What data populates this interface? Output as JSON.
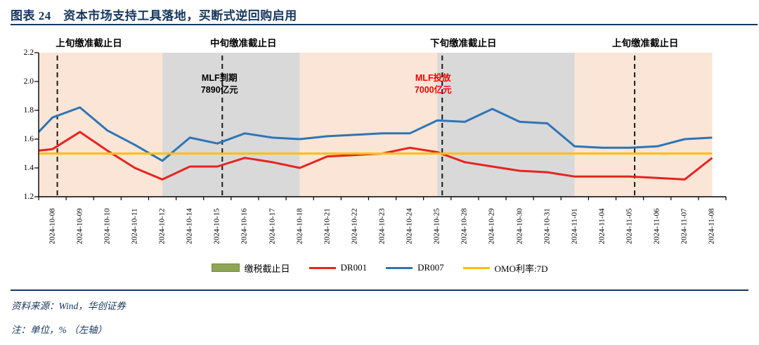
{
  "title": "图表 24　资本市场支持工具落地，买断式逆回购启用",
  "footer": {
    "source": "资料来源：Wind，华创证券",
    "note": "注：单位，% （左轴）"
  },
  "colors": {
    "navy": "#17375e",
    "band_pink": "#fbe5d6",
    "band_gray": "#d9d9d9",
    "dr001_red": "#e8231f",
    "dr007_blue": "#2e75b6",
    "omo_yellow": "#ffc000",
    "legend_green": "#8da656",
    "note_red": "#ff0000",
    "annotation_black": "#000000"
  },
  "legend": [
    {
      "label": "缴税截止日",
      "swatch": "box",
      "color": "#8da656"
    },
    {
      "label": "DR001",
      "swatch": "line",
      "color": "#e8231f"
    },
    {
      "label": "DR007",
      "swatch": "line",
      "color": "#2e75b6"
    },
    {
      "label": "OMO利率:7D",
      "swatch": "line",
      "color": "#ffc000"
    }
  ],
  "chart_data": {
    "type": "line",
    "title": "",
    "xlabel": "",
    "ylabel": "%（左轴）",
    "ylim": [
      1.2,
      2.2
    ],
    "yticks": [
      1.2,
      1.4,
      1.6,
      1.8,
      2.0,
      2.2
    ],
    "grid": false,
    "legend_position": "bottom",
    "categories": [
      "2024-10-08",
      "2024-10-09",
      "2024-10-10",
      "2024-10-11",
      "2024-10-12",
      "2024-10-14",
      "2024-10-15",
      "2024-10-16",
      "2024-10-17",
      "2024-10-18",
      "2024-10-21",
      "2024-10-22",
      "2024-10-23",
      "2024-10-24",
      "2024-10-25",
      "2024-10-28",
      "2024-10-29",
      "2024-10-30",
      "2024-10-31",
      "2024-11-01",
      "2024-11-04",
      "2024-11-05",
      "2024-11-06",
      "2024-11-07",
      "2024-11-08"
    ],
    "series": [
      {
        "name": "DR001",
        "color": "#e8231f",
        "edge_start": 1.52,
        "values": [
          1.53,
          1.65,
          1.52,
          1.4,
          1.32,
          1.41,
          1.41,
          1.47,
          1.44,
          1.4,
          1.48,
          1.49,
          1.5,
          1.54,
          1.51,
          1.44,
          1.41,
          1.38,
          1.37,
          1.34,
          1.34,
          1.34,
          1.33,
          1.32,
          1.47
        ]
      },
      {
        "name": "DR007",
        "color": "#2e75b6",
        "edge_start": 1.65,
        "values": [
          1.75,
          1.82,
          1.66,
          1.56,
          1.45,
          1.61,
          1.57,
          1.64,
          1.61,
          1.6,
          1.62,
          1.63,
          1.64,
          1.64,
          1.73,
          1.72,
          1.81,
          1.72,
          1.71,
          1.55,
          1.54,
          1.54,
          1.55,
          1.6,
          1.61
        ]
      },
      {
        "name": "OMO利率:7D",
        "color": "#ffc000",
        "edge_start": 1.5,
        "values": [
          1.5,
          1.5,
          1.5,
          1.5,
          1.5,
          1.5,
          1.5,
          1.5,
          1.5,
          1.5,
          1.5,
          1.5,
          1.5,
          1.5,
          1.5,
          1.5,
          1.5,
          1.5,
          1.5,
          1.5,
          1.5,
          1.5,
          1.5,
          1.5,
          1.5
        ]
      }
    ],
    "background_bands": [
      {
        "color": "#fbe5d6",
        "from": "edge",
        "to": "2024-10-12"
      },
      {
        "color": "#d9d9d9",
        "from": "2024-10-12",
        "to": "2024-10-18"
      },
      {
        "color": "#fbe5d6",
        "from": "2024-10-18",
        "to": "2024-10-25"
      },
      {
        "color": "#d9d9d9",
        "from": "2024-10-25",
        "to": "2024-11-01"
      },
      {
        "color": "#fbe5d6",
        "from": "2024-11-01",
        "to": "2024-11-08"
      }
    ],
    "vertical_dashed_lines": [
      {
        "date": "2024-10-08",
        "label": "上旬缴准截止日"
      },
      {
        "date": "2024-10-15",
        "label": "中旬缴准截止日"
      },
      {
        "date": "2024-10-25",
        "label": "下旬缴准截止日"
      },
      {
        "date": "2024-11-05",
        "label": "上旬缴准截止日"
      }
    ],
    "annotations": [
      {
        "date": "2024-10-15",
        "lines": [
          "MLF到期",
          "7890亿元"
        ],
        "color": "#000000"
      },
      {
        "date": "2024-10-25",
        "lines": [
          "MLF投放",
          "7000亿元"
        ],
        "color": "#ff0000"
      }
    ]
  }
}
